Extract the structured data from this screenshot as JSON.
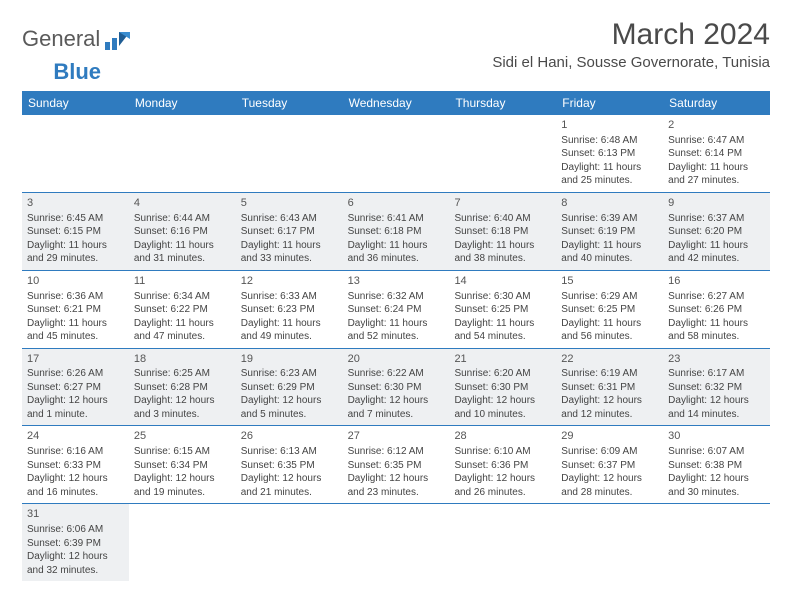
{
  "brand": {
    "part1": "General",
    "part2": "Blue"
  },
  "title": "March 2024",
  "location": "Sidi el Hani, Sousse Governorate, Tunisia",
  "colors": {
    "header_bg": "#2f7bbf",
    "header_text": "#ffffff",
    "shade_bg": "#eef0f2",
    "border": "#2f7bbf",
    "title_color": "#4a4a4a",
    "text_color": "#444444"
  },
  "typography": {
    "title_size": 30,
    "location_size": 15,
    "header_size": 12,
    "cell_size": 10,
    "daynum_size": 11
  },
  "day_headers": [
    "Sunday",
    "Monday",
    "Tuesday",
    "Wednesday",
    "Thursday",
    "Friday",
    "Saturday"
  ],
  "weeks": [
    [
      {
        "empty": true
      },
      {
        "empty": true
      },
      {
        "empty": true
      },
      {
        "empty": true
      },
      {
        "empty": true
      },
      {
        "day": "1",
        "sunrise": "Sunrise: 6:48 AM",
        "sunset": "Sunset: 6:13 PM",
        "daylight1": "Daylight: 11 hours",
        "daylight2": "and 25 minutes."
      },
      {
        "day": "2",
        "sunrise": "Sunrise: 6:47 AM",
        "sunset": "Sunset: 6:14 PM",
        "daylight1": "Daylight: 11 hours",
        "daylight2": "and 27 minutes."
      }
    ],
    [
      {
        "day": "3",
        "shade": true,
        "sunrise": "Sunrise: 6:45 AM",
        "sunset": "Sunset: 6:15 PM",
        "daylight1": "Daylight: 11 hours",
        "daylight2": "and 29 minutes."
      },
      {
        "day": "4",
        "shade": true,
        "sunrise": "Sunrise: 6:44 AM",
        "sunset": "Sunset: 6:16 PM",
        "daylight1": "Daylight: 11 hours",
        "daylight2": "and 31 minutes."
      },
      {
        "day": "5",
        "shade": true,
        "sunrise": "Sunrise: 6:43 AM",
        "sunset": "Sunset: 6:17 PM",
        "daylight1": "Daylight: 11 hours",
        "daylight2": "and 33 minutes."
      },
      {
        "day": "6",
        "shade": true,
        "sunrise": "Sunrise: 6:41 AM",
        "sunset": "Sunset: 6:18 PM",
        "daylight1": "Daylight: 11 hours",
        "daylight2": "and 36 minutes."
      },
      {
        "day": "7",
        "shade": true,
        "sunrise": "Sunrise: 6:40 AM",
        "sunset": "Sunset: 6:18 PM",
        "daylight1": "Daylight: 11 hours",
        "daylight2": "and 38 minutes."
      },
      {
        "day": "8",
        "shade": true,
        "sunrise": "Sunrise: 6:39 AM",
        "sunset": "Sunset: 6:19 PM",
        "daylight1": "Daylight: 11 hours",
        "daylight2": "and 40 minutes."
      },
      {
        "day": "9",
        "shade": true,
        "sunrise": "Sunrise: 6:37 AM",
        "sunset": "Sunset: 6:20 PM",
        "daylight1": "Daylight: 11 hours",
        "daylight2": "and 42 minutes."
      }
    ],
    [
      {
        "day": "10",
        "sunrise": "Sunrise: 6:36 AM",
        "sunset": "Sunset: 6:21 PM",
        "daylight1": "Daylight: 11 hours",
        "daylight2": "and 45 minutes."
      },
      {
        "day": "11",
        "sunrise": "Sunrise: 6:34 AM",
        "sunset": "Sunset: 6:22 PM",
        "daylight1": "Daylight: 11 hours",
        "daylight2": "and 47 minutes."
      },
      {
        "day": "12",
        "sunrise": "Sunrise: 6:33 AM",
        "sunset": "Sunset: 6:23 PM",
        "daylight1": "Daylight: 11 hours",
        "daylight2": "and 49 minutes."
      },
      {
        "day": "13",
        "sunrise": "Sunrise: 6:32 AM",
        "sunset": "Sunset: 6:24 PM",
        "daylight1": "Daylight: 11 hours",
        "daylight2": "and 52 minutes."
      },
      {
        "day": "14",
        "sunrise": "Sunrise: 6:30 AM",
        "sunset": "Sunset: 6:25 PM",
        "daylight1": "Daylight: 11 hours",
        "daylight2": "and 54 minutes."
      },
      {
        "day": "15",
        "sunrise": "Sunrise: 6:29 AM",
        "sunset": "Sunset: 6:25 PM",
        "daylight1": "Daylight: 11 hours",
        "daylight2": "and 56 minutes."
      },
      {
        "day": "16",
        "sunrise": "Sunrise: 6:27 AM",
        "sunset": "Sunset: 6:26 PM",
        "daylight1": "Daylight: 11 hours",
        "daylight2": "and 58 minutes."
      }
    ],
    [
      {
        "day": "17",
        "shade": true,
        "sunrise": "Sunrise: 6:26 AM",
        "sunset": "Sunset: 6:27 PM",
        "daylight1": "Daylight: 12 hours",
        "daylight2": "and 1 minute."
      },
      {
        "day": "18",
        "shade": true,
        "sunrise": "Sunrise: 6:25 AM",
        "sunset": "Sunset: 6:28 PM",
        "daylight1": "Daylight: 12 hours",
        "daylight2": "and 3 minutes."
      },
      {
        "day": "19",
        "shade": true,
        "sunrise": "Sunrise: 6:23 AM",
        "sunset": "Sunset: 6:29 PM",
        "daylight1": "Daylight: 12 hours",
        "daylight2": "and 5 minutes."
      },
      {
        "day": "20",
        "shade": true,
        "sunrise": "Sunrise: 6:22 AM",
        "sunset": "Sunset: 6:30 PM",
        "daylight1": "Daylight: 12 hours",
        "daylight2": "and 7 minutes."
      },
      {
        "day": "21",
        "shade": true,
        "sunrise": "Sunrise: 6:20 AM",
        "sunset": "Sunset: 6:30 PM",
        "daylight1": "Daylight: 12 hours",
        "daylight2": "and 10 minutes."
      },
      {
        "day": "22",
        "shade": true,
        "sunrise": "Sunrise: 6:19 AM",
        "sunset": "Sunset: 6:31 PM",
        "daylight1": "Daylight: 12 hours",
        "daylight2": "and 12 minutes."
      },
      {
        "day": "23",
        "shade": true,
        "sunrise": "Sunrise: 6:17 AM",
        "sunset": "Sunset: 6:32 PM",
        "daylight1": "Daylight: 12 hours",
        "daylight2": "and 14 minutes."
      }
    ],
    [
      {
        "day": "24",
        "sunrise": "Sunrise: 6:16 AM",
        "sunset": "Sunset: 6:33 PM",
        "daylight1": "Daylight: 12 hours",
        "daylight2": "and 16 minutes."
      },
      {
        "day": "25",
        "sunrise": "Sunrise: 6:15 AM",
        "sunset": "Sunset: 6:34 PM",
        "daylight1": "Daylight: 12 hours",
        "daylight2": "and 19 minutes."
      },
      {
        "day": "26",
        "sunrise": "Sunrise: 6:13 AM",
        "sunset": "Sunset: 6:35 PM",
        "daylight1": "Daylight: 12 hours",
        "daylight2": "and 21 minutes."
      },
      {
        "day": "27",
        "sunrise": "Sunrise: 6:12 AM",
        "sunset": "Sunset: 6:35 PM",
        "daylight1": "Daylight: 12 hours",
        "daylight2": "and 23 minutes."
      },
      {
        "day": "28",
        "sunrise": "Sunrise: 6:10 AM",
        "sunset": "Sunset: 6:36 PM",
        "daylight1": "Daylight: 12 hours",
        "daylight2": "and 26 minutes."
      },
      {
        "day": "29",
        "sunrise": "Sunrise: 6:09 AM",
        "sunset": "Sunset: 6:37 PM",
        "daylight1": "Daylight: 12 hours",
        "daylight2": "and 28 minutes."
      },
      {
        "day": "30",
        "sunrise": "Sunrise: 6:07 AM",
        "sunset": "Sunset: 6:38 PM",
        "daylight1": "Daylight: 12 hours",
        "daylight2": "and 30 minutes."
      }
    ],
    [
      {
        "day": "31",
        "shade": true,
        "sunrise": "Sunrise: 6:06 AM",
        "sunset": "Sunset: 6:39 PM",
        "daylight1": "Daylight: 12 hours",
        "daylight2": "and 32 minutes."
      },
      {
        "empty": true
      },
      {
        "empty": true
      },
      {
        "empty": true
      },
      {
        "empty": true
      },
      {
        "empty": true
      },
      {
        "empty": true
      }
    ]
  ]
}
